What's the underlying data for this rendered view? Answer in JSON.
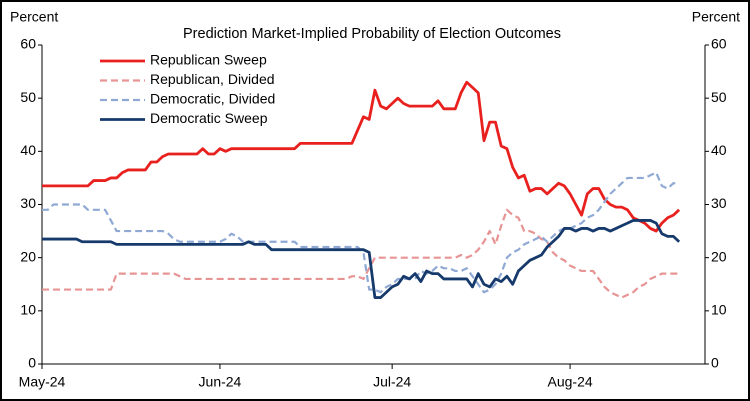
{
  "chart_data": {
    "type": "line",
    "title": "Prediction Market-Implied Probability of Election Outcomes",
    "y_label": "Percent",
    "y2_label": "Percent",
    "categories": [
      "May-24",
      null,
      null,
      null,
      null,
      null,
      null,
      null,
      null,
      null,
      null,
      null,
      null,
      null,
      null,
      null,
      null,
      null,
      null,
      null,
      null,
      null,
      null,
      null,
      null,
      null,
      null,
      null,
      null,
      null,
      null,
      "Jun-24",
      null,
      null,
      null,
      null,
      null,
      null,
      null,
      null,
      null,
      null,
      null,
      null,
      null,
      null,
      null,
      null,
      null,
      null,
      null,
      null,
      null,
      null,
      null,
      null,
      null,
      null,
      null,
      null,
      null,
      "Jul-24",
      null,
      null,
      null,
      null,
      null,
      null,
      null,
      null,
      null,
      null,
      null,
      null,
      null,
      null,
      null,
      null,
      null,
      null,
      null,
      null,
      null,
      null,
      null,
      null,
      null,
      null,
      null,
      null,
      null,
      null,
      "Aug-24",
      null,
      null,
      null,
      null,
      null,
      null,
      null,
      null,
      null,
      null,
      null,
      null,
      null,
      null,
      null,
      null,
      null,
      null,
      null
    ],
    "ylim": [
      0,
      60
    ],
    "yticks": [
      0,
      10,
      20,
      30,
      40,
      50,
      60
    ],
    "y2lim": [
      0,
      60
    ],
    "y2ticks": [
      0,
      10,
      20,
      30,
      40,
      50,
      60
    ],
    "legend": "upper left",
    "series": [
      {
        "name": "Republican Sweep",
        "color": "#e8211f",
        "dashed": false,
        "values": [
          33.5,
          33.5,
          33.5,
          33.5,
          33.5,
          33.5,
          33.5,
          33.5,
          33.5,
          34.5,
          34.5,
          34.5,
          35,
          35,
          36,
          36.5,
          36.5,
          36.5,
          36.5,
          38,
          38,
          39,
          39.5,
          39.5,
          39.5,
          39.5,
          39.5,
          39.5,
          40.5,
          39.5,
          39.5,
          40.5,
          40,
          40.5,
          40.5,
          40.5,
          40.5,
          40.5,
          40.5,
          40.5,
          40.5,
          40.5,
          40.5,
          40.5,
          40.5,
          41.5,
          41.5,
          41.5,
          41.5,
          41.5,
          41.5,
          41.5,
          41.5,
          41.5,
          41.5,
          44,
          46.5,
          46,
          51.5,
          48.5,
          48,
          49,
          50,
          49,
          48.5,
          48.5,
          48.5,
          48.5,
          48.5,
          49.5,
          48,
          48,
          48,
          51,
          53,
          52,
          51,
          42,
          45.5,
          45.5,
          41,
          40.5,
          37,
          35,
          35.5,
          32.5,
          33,
          33,
          32,
          33,
          34,
          33.5,
          32,
          30,
          28,
          32,
          33,
          33,
          31,
          30,
          29.5,
          29.5,
          29,
          27.5,
          27,
          26.5,
          25.5,
          25,
          26.5,
          27.5,
          28,
          29
        ]
      },
      {
        "name": "Republican, Divided",
        "color": "#e79494",
        "dashed": true,
        "values": [
          14,
          14,
          14,
          14,
          14,
          14,
          14,
          14,
          14,
          14,
          14,
          14,
          14,
          17,
          17,
          17,
          17,
          17,
          17,
          17,
          17,
          17,
          17,
          17,
          16.5,
          16,
          16,
          16,
          16,
          16,
          16,
          16,
          16,
          16,
          16,
          16,
          16,
          16,
          16,
          16,
          16,
          16,
          16,
          16,
          16,
          16,
          16,
          16,
          16,
          16,
          16,
          16,
          16,
          16,
          16.5,
          16.5,
          16,
          18,
          20,
          20,
          20,
          20,
          20,
          20,
          20,
          20,
          20,
          20,
          20,
          20,
          20,
          20,
          20,
          20.5,
          20,
          20.5,
          21.5,
          23,
          25,
          22.5,
          26,
          29,
          28,
          27.5,
          25,
          25,
          24.5,
          23.5,
          23,
          21,
          20,
          19.5,
          18.5,
          18,
          17.5,
          17.5,
          17.5,
          16,
          14.5,
          13.5,
          13,
          12.5,
          13,
          13.5,
          14.5,
          15,
          16,
          16.5,
          17,
          17,
          17,
          17
        ]
      },
      {
        "name": "Democratic, Divided",
        "color": "#8fa9d4",
        "dashed": true,
        "values": [
          29,
          29,
          30,
          30,
          30,
          30,
          30,
          30,
          29,
          29,
          29,
          29,
          27,
          25,
          25,
          25,
          25,
          25,
          25,
          25,
          25,
          25,
          24.5,
          23.5,
          23,
          23,
          23,
          23,
          23,
          23,
          23,
          23,
          23.5,
          24.5,
          24,
          23,
          23,
          23,
          23,
          23,
          23,
          23,
          23,
          23,
          23,
          22,
          22,
          22,
          22,
          22,
          22,
          22,
          22,
          22,
          22,
          22,
          21,
          14,
          14,
          13.5,
          14.5,
          15,
          16,
          16,
          16,
          16,
          17.5,
          17,
          17.5,
          18.5,
          18,
          18,
          17.5,
          17.5,
          18,
          16.5,
          15,
          13.5,
          14,
          15,
          17,
          20,
          21,
          21.5,
          22.5,
          23,
          23.5,
          24,
          23,
          24,
          25,
          25.5,
          25.5,
          26,
          26.5,
          27.5,
          28,
          29,
          30.5,
          32,
          33,
          34,
          35,
          35,
          35,
          35,
          35.5,
          36,
          33.5,
          33,
          34,
          34
        ]
      },
      {
        "name": "Democratic Sweep",
        "color": "#163a6b",
        "dashed": false,
        "values": [
          23.5,
          23.5,
          23.5,
          23.5,
          23.5,
          23.5,
          23.5,
          23,
          23,
          23,
          23,
          23,
          23,
          22.5,
          22.5,
          22.5,
          22.5,
          22.5,
          22.5,
          22.5,
          22.5,
          22.5,
          22.5,
          22.5,
          22.5,
          22.5,
          22.5,
          22.5,
          22.5,
          22.5,
          22.5,
          22.5,
          22.5,
          22.5,
          22.5,
          22.5,
          23,
          22.5,
          22.5,
          22.5,
          21.5,
          21.5,
          21.5,
          21.5,
          21.5,
          21.5,
          21.5,
          21.5,
          21.5,
          21.5,
          21.5,
          21.5,
          21.5,
          21.5,
          21.5,
          21.5,
          21.5,
          21,
          12.5,
          12.5,
          13.5,
          14.5,
          15,
          16.5,
          16,
          17,
          15.5,
          17.5,
          17,
          17,
          16,
          16,
          16,
          16,
          16,
          14.5,
          17,
          15,
          14.5,
          16,
          15.5,
          16.5,
          15,
          17.5,
          18.5,
          19.5,
          20,
          20.5,
          22,
          23,
          24,
          25.5,
          25.5,
          25,
          25.5,
          25.5,
          25,
          25.5,
          25.5,
          25,
          25.5,
          26,
          26.5,
          27,
          27,
          27,
          27,
          26.5,
          24.5,
          24,
          24,
          23
        ]
      }
    ]
  }
}
